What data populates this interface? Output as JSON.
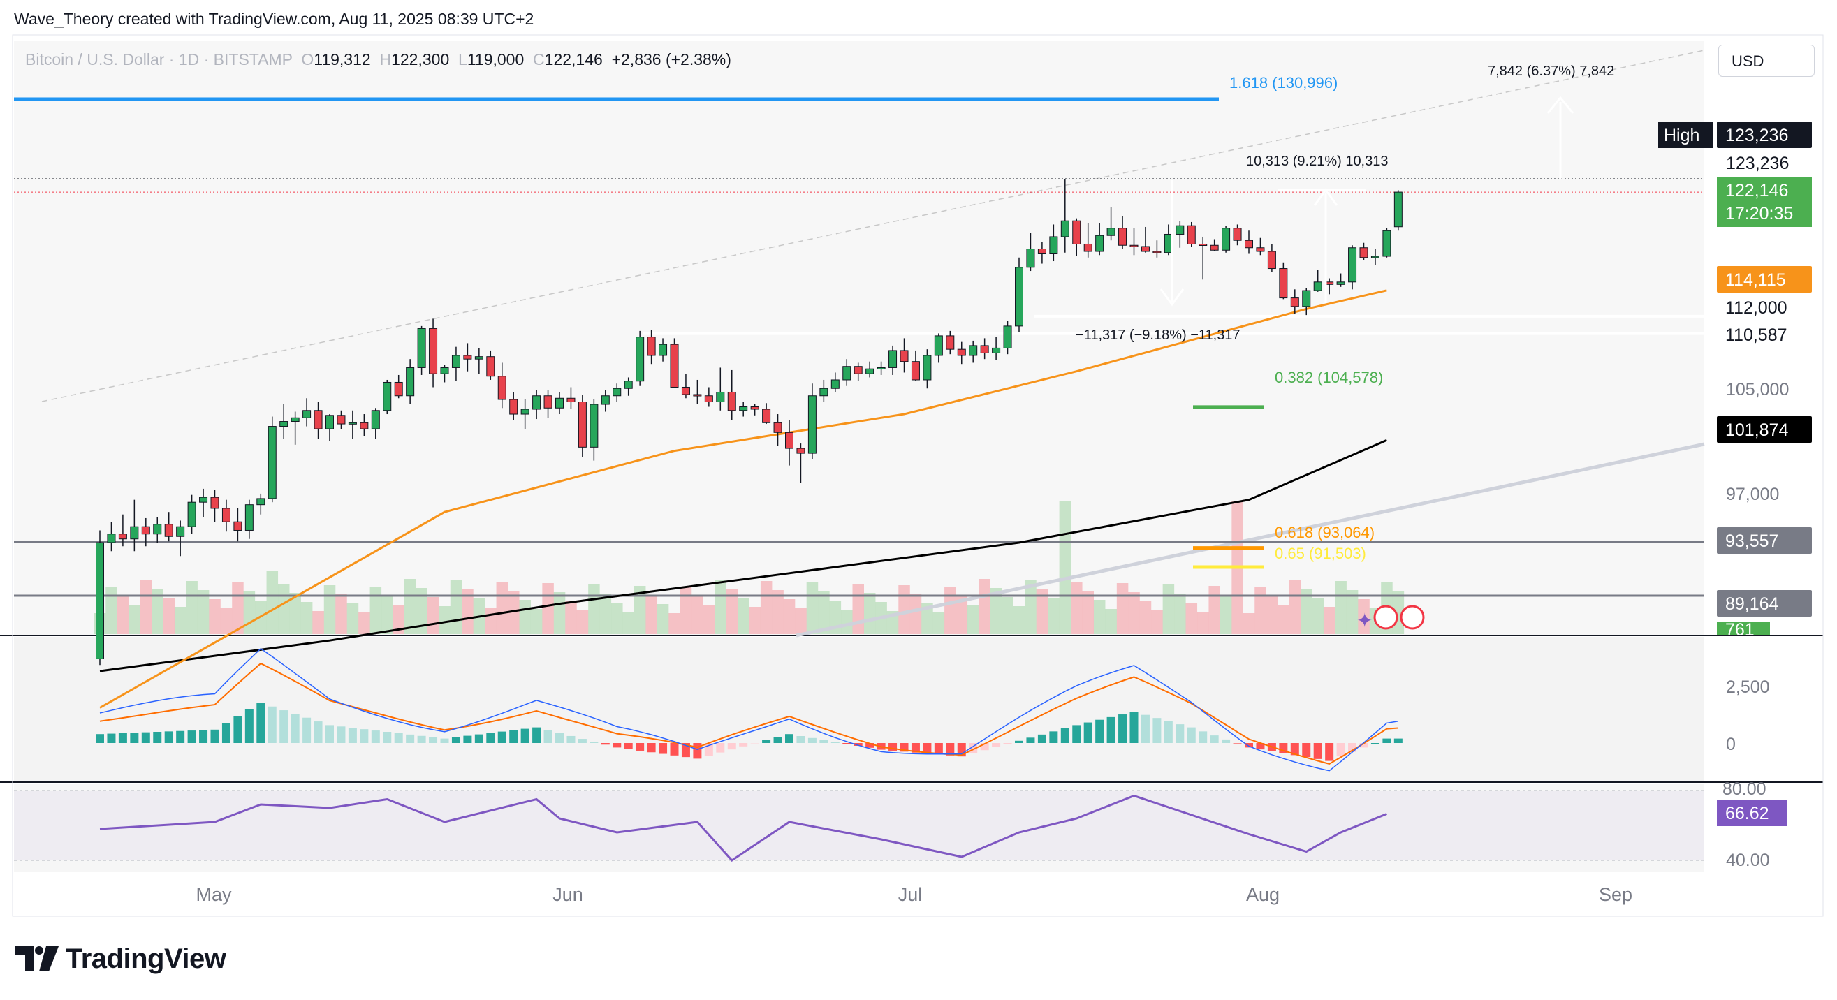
{
  "header": {
    "text": "Wave_Theory created with TradingView.com, Aug 11, 2025 08:39 UTC+2"
  },
  "legend": {
    "symbol": "Bitcoin / U.S. Dollar · 1D · BITSTAMP",
    "o_label": "O",
    "o": "119,312",
    "h_label": "H",
    "h": "122,300",
    "l_label": "L",
    "l": "119,000",
    "c_label": "C",
    "c": "122,146",
    "change": "+2,836 (+2.38%)"
  },
  "currency_button": "USD",
  "brand": "TradingView",
  "colors": {
    "up": "#089981",
    "down": "#f23645",
    "ema50": "#f7931a",
    "ema200": "#000000",
    "fib1618": "#2196f3",
    "fib382": "#4caf50",
    "fib618": "#ff9800",
    "fib65": "#ffeb3b",
    "macd": "#2962ff",
    "signal": "#ff6d00",
    "rsi": "#7e57c2",
    "price_label": "#4caf50"
  },
  "chart_data": [
    {
      "type": "candlestick",
      "title": "Bitcoin / U.S. Dollar · 1D · BITSTAMP",
      "x_ticks": [
        "May",
        "Jun",
        "Jul",
        "Aug",
        "Sep"
      ],
      "y_ticks": [
        "123,236",
        "112,000",
        "110,587",
        "105,000",
        "101,874",
        "97,000",
        "93,557",
        "89,164"
      ],
      "ohlc": [
        [
          84000,
          94500,
          83500,
          93500
        ],
        [
          93500,
          95200,
          92800,
          94200
        ],
        [
          94200,
          95800,
          93200,
          93800
        ],
        [
          93800,
          97000,
          92800,
          94800
        ],
        [
          94800,
          95500,
          93200,
          94200
        ],
        [
          94200,
          95600,
          93500,
          95000
        ],
        [
          95000,
          96000,
          93600,
          94000
        ],
        [
          94000,
          95300,
          92400,
          94800
        ],
        [
          94800,
          97400,
          94200,
          96800
        ],
        [
          96800,
          97900,
          95600,
          97200
        ],
        [
          97200,
          97800,
          95200,
          96300
        ],
        [
          96300,
          97000,
          94400,
          95200
        ],
        [
          95200,
          96300,
          93600,
          94500
        ],
        [
          94500,
          97000,
          93800,
          96600
        ],
        [
          96600,
          97500,
          95800,
          97100
        ],
        [
          97100,
          103800,
          96800,
          103000
        ],
        [
          103000,
          104800,
          102000,
          103400
        ],
        [
          103400,
          104200,
          101500,
          103700
        ],
        [
          103700,
          105300,
          103000,
          104300
        ],
        [
          104300,
          105000,
          102000,
          102800
        ],
        [
          102800,
          104000,
          101800,
          103900
        ],
        [
          103900,
          104300,
          102800,
          103200
        ],
        [
          103200,
          104300,
          102000,
          103300
        ],
        [
          103300,
          104000,
          102200,
          102800
        ],
        [
          102800,
          104500,
          102000,
          104300
        ],
        [
          104300,
          106800,
          104000,
          106600
        ],
        [
          106600,
          107200,
          105300,
          105500
        ],
        [
          105500,
          108500,
          104800,
          107800
        ],
        [
          107800,
          111200,
          107200,
          111000
        ],
        [
          111000,
          111800,
          106200,
          107300
        ],
        [
          107300,
          108000,
          106600,
          107800
        ],
        [
          107800,
          109500,
          106700,
          108800
        ],
        [
          108800,
          109800,
          107500,
          108500
        ],
        [
          108500,
          109400,
          107300,
          108700
        ],
        [
          108700,
          109200,
          106800,
          107100
        ],
        [
          107100,
          108200,
          104500,
          105200
        ],
        [
          105200,
          105800,
          103500,
          104000
        ],
        [
          104000,
          105200,
          102800,
          104400
        ],
        [
          104400,
          106000,
          103600,
          105500
        ],
        [
          105500,
          106000,
          103700,
          104500
        ],
        [
          104500,
          105800,
          104000,
          105300
        ],
        [
          105300,
          106200,
          104400,
          105000
        ],
        [
          105000,
          105600,
          100500,
          101300
        ],
        [
          101300,
          105200,
          100200,
          104800
        ],
        [
          104800,
          106000,
          104200,
          105500
        ],
        [
          105500,
          106500,
          105000,
          106100
        ],
        [
          106100,
          107000,
          105500,
          106700
        ],
        [
          106700,
          110800,
          106300,
          110300
        ],
        [
          110300,
          110900,
          108100,
          108800
        ],
        [
          108800,
          110200,
          108300,
          109700
        ],
        [
          109700,
          110200,
          106300,
          106200
        ],
        [
          106200,
          107300,
          105300,
          105600
        ],
        [
          105600,
          106800,
          104800,
          105500
        ],
        [
          105500,
          106200,
          104600,
          105000
        ],
        [
          105000,
          107800,
          104300,
          105800
        ],
        [
          105800,
          107600,
          103500,
          104300
        ],
        [
          104300,
          105000,
          103800,
          104600
        ],
        [
          104600,
          104800,
          103900,
          104400
        ],
        [
          104400,
          104900,
          103200,
          103300
        ],
        [
          103300,
          104000,
          101400,
          102500
        ],
        [
          102500,
          103500,
          99800,
          101200
        ],
        [
          101200,
          101600,
          98400,
          100800
        ],
        [
          100800,
          106500,
          100300,
          105500
        ],
        [
          105500,
          106800,
          105000,
          106100
        ],
        [
          106100,
          107400,
          105800,
          106800
        ],
        [
          106800,
          108500,
          106300,
          107900
        ],
        [
          107900,
          108200,
          106700,
          107300
        ],
        [
          107300,
          108300,
          107000,
          107700
        ],
        [
          107700,
          108300,
          107200,
          107800
        ],
        [
          107800,
          109600,
          107200,
          109200
        ],
        [
          109200,
          110200,
          107400,
          108300
        ],
        [
          108300,
          109200,
          106700,
          106800
        ],
        [
          106800,
          109300,
          106100,
          108800
        ],
        [
          108800,
          110600,
          108200,
          110400
        ],
        [
          110400,
          110800,
          108900,
          109300
        ],
        [
          109300,
          109900,
          108100,
          108800
        ],
        [
          108800,
          110000,
          108200,
          109600
        ],
        [
          109600,
          110200,
          108500,
          109000
        ],
        [
          109000,
          110300,
          108400,
          109400
        ],
        [
          109400,
          111600,
          108900,
          111200
        ],
        [
          111200,
          116800,
          110700,
          116000
        ],
        [
          116000,
          118800,
          115700,
          117500
        ],
        [
          117500,
          118100,
          116300,
          117100
        ],
        [
          117100,
          119500,
          116500,
          118500
        ],
        [
          118500,
          123236,
          117200,
          119800
        ],
        [
          119800,
          120000,
          116900,
          117900
        ],
        [
          117900,
          119600,
          116800,
          117300
        ],
        [
          117300,
          119600,
          117000,
          118600
        ],
        [
          118600,
          120900,
          118200,
          119200
        ],
        [
          119200,
          120200,
          117500,
          117800
        ],
        [
          117800,
          119200,
          117000,
          117700
        ],
        [
          117700,
          119300,
          117200,
          117300
        ],
        [
          117300,
          118200,
          116800,
          117200
        ],
        [
          117200,
          119500,
          117000,
          118700
        ],
        [
          118700,
          119800,
          117600,
          119400
        ],
        [
          119400,
          119700,
          117700,
          117900
        ],
        [
          117900,
          118500,
          115000,
          117800
        ],
        [
          117800,
          118300,
          117300,
          117400
        ],
        [
          117400,
          119400,
          117200,
          119200
        ],
        [
          119200,
          119500,
          117800,
          118200
        ],
        [
          118200,
          119000,
          117100,
          117600
        ],
        [
          117600,
          118400,
          117000,
          117300
        ],
        [
          117300,
          117900,
          115600,
          115900
        ],
        [
          115900,
          116400,
          113400,
          113500
        ],
        [
          113500,
          114200,
          112200,
          112800
        ],
        [
          112800,
          114300,
          112100,
          114100
        ],
        [
          114100,
          115800,
          114000,
          114800
        ],
        [
          114800,
          115100,
          113800,
          114600
        ],
        [
          114600,
          115500,
          114400,
          114800
        ],
        [
          114800,
          117800,
          114200,
          117600
        ],
        [
          117600,
          118000,
          116600,
          116800
        ],
        [
          116800,
          117500,
          116200,
          116900
        ],
        [
          116900,
          119200,
          116800,
          119000
        ],
        [
          119312,
          122300,
          119000,
          122146
        ]
      ],
      "ema50_approx": [
        [
          0,
          80000
        ],
        [
          15,
          88000
        ],
        [
          30,
          96000
        ],
        [
          50,
          101000
        ],
        [
          70,
          104000
        ],
        [
          85,
          107500
        ],
        [
          105,
          112600
        ],
        [
          112,
          114115
        ]
      ],
      "ema200_approx": [
        [
          0,
          83000
        ],
        [
          20,
          85500
        ],
        [
          40,
          88500
        ],
        [
          60,
          91000
        ],
        [
          80,
          93500
        ],
        [
          100,
          97000
        ],
        [
          112,
          101874
        ]
      ],
      "price_labels": {
        "high_label": "High",
        "high": "123,236",
        "level_1": "123,236",
        "last_price": "122,146",
        "countdown": "17:20:35",
        "ema50": "114,115",
        "level_2": "112,000",
        "level_3": "110,587",
        "ema200": "101,874",
        "level_4": "93,557",
        "level_5": "89,164",
        "volume": "761"
      },
      "fib_levels": [
        {
          "label": "1.618 (130,996)",
          "value": 130996
        },
        {
          "label": "0.382 (104,578)",
          "value": 104578
        },
        {
          "label": "0.618 (93,064)",
          "value": 93064
        },
        {
          "label": "0.65 (91,503)",
          "value": 91503
        }
      ],
      "measurements": [
        {
          "label": "10,313 (9.21%) 10,313"
        },
        {
          "label": "−11,317 (−9.18%) −11,317"
        },
        {
          "label": "7,842 (6.37%) 7,842"
        }
      ]
    },
    {
      "type": "histogram",
      "title": "MACD",
      "y_ticks": [
        "2,500",
        "0"
      ],
      "hist_approx": [
        [
          0,
          400
        ],
        [
          10,
          600
        ],
        [
          14,
          1800
        ],
        [
          20,
          800
        ],
        [
          30,
          200
        ],
        [
          38,
          700
        ],
        [
          45,
          -200
        ],
        [
          52,
          -700
        ],
        [
          60,
          400
        ],
        [
          68,
          -300
        ],
        [
          75,
          -600
        ],
        [
          85,
          800
        ],
        [
          90,
          1400
        ],
        [
          95,
          700
        ],
        [
          100,
          -200
        ],
        [
          107,
          -800
        ],
        [
          112,
          200
        ]
      ]
    },
    {
      "type": "line",
      "title": "RSI",
      "y_ticks": [
        "80.00",
        "40.00"
      ],
      "last_value": "66.62",
      "rsi_approx": [
        [
          0,
          58
        ],
        [
          10,
          62
        ],
        [
          14,
          72
        ],
        [
          20,
          70
        ],
        [
          25,
          75
        ],
        [
          30,
          62
        ],
        [
          38,
          75
        ],
        [
          40,
          64
        ],
        [
          45,
          56
        ],
        [
          52,
          62
        ],
        [
          55,
          40
        ],
        [
          60,
          62
        ],
        [
          68,
          52
        ],
        [
          75,
          42
        ],
        [
          80,
          56
        ],
        [
          85,
          64
        ],
        [
          90,
          77
        ],
        [
          95,
          66
        ],
        [
          100,
          55
        ],
        [
          105,
          45
        ],
        [
          108,
          56
        ],
        [
          112,
          66.62
        ]
      ]
    }
  ]
}
